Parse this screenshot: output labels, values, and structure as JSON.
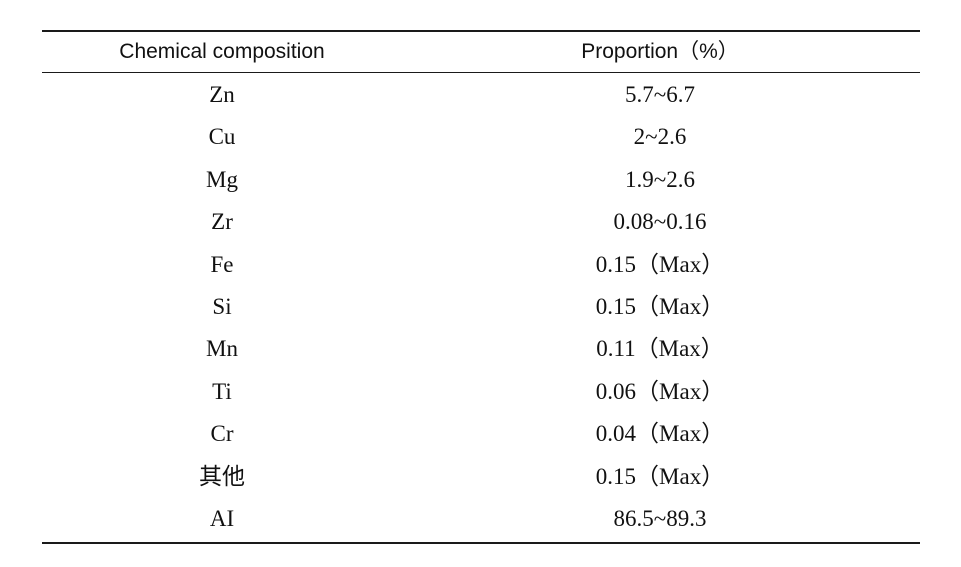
{
  "table": {
    "columns": [
      "Chemical composition",
      "Proportion（%）"
    ],
    "rows": [
      {
        "element": "Zn",
        "proportion": "5.7~6.7"
      },
      {
        "element": "Cu",
        "proportion": "2~2.6"
      },
      {
        "element": "Mg",
        "proportion": "1.9~2.6"
      },
      {
        "element": "Zr",
        "proportion": "0.08~0.16"
      },
      {
        "element": "Fe",
        "proportion": "0.15（Max）"
      },
      {
        "element": "Si",
        "proportion": "0.15（Max）"
      },
      {
        "element": "Mn",
        "proportion": "0.11（Max）"
      },
      {
        "element": "Ti",
        "proportion": "0.06（Max）"
      },
      {
        "element": "Cr",
        "proportion": "0.04（Max）"
      },
      {
        "element": "其他",
        "proportion": "0.15（Max）"
      },
      {
        "element": "AI",
        "proportion": "86.5~89.3"
      }
    ]
  }
}
